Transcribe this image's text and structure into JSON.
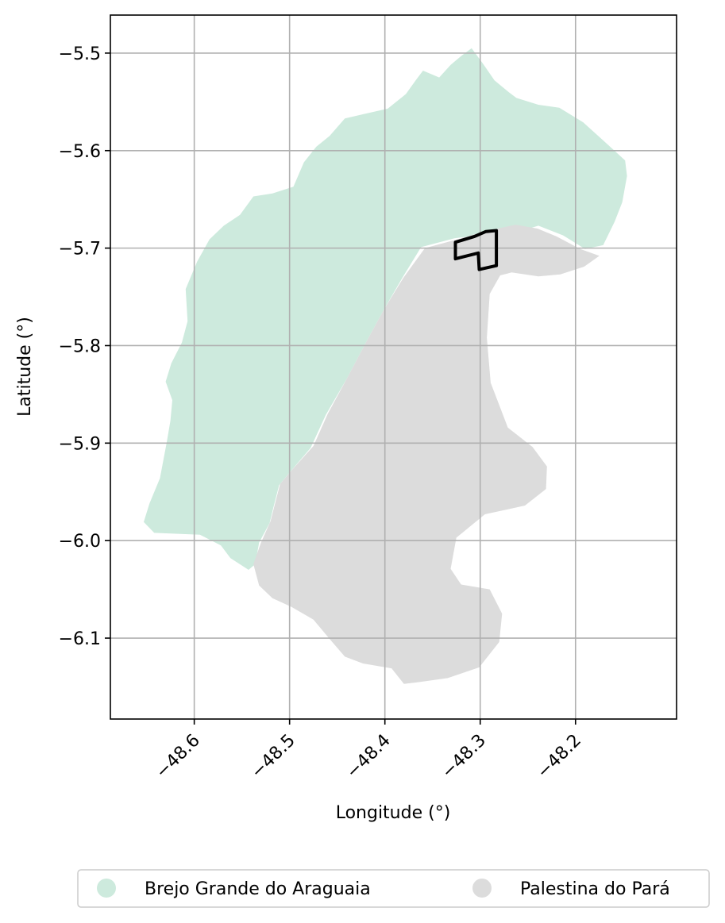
{
  "chart_data": {
    "type": "map",
    "xlabel": "Longitude (°)",
    "ylabel": "Latitude (°)",
    "xlim": [
      -48.688,
      -48.094
    ],
    "ylim": [
      -6.183,
      -5.461
    ],
    "xticks": [
      -48.6,
      -48.5,
      -48.4,
      -48.3,
      -48.2
    ],
    "xtick_labels": [
      "−48.6",
      "−48.5",
      "−48.4",
      "−48.3",
      "−48.2"
    ],
    "yticks": [
      -5.5,
      -5.6,
      -5.7,
      -5.8,
      -5.9,
      -6.0,
      -6.1
    ],
    "ytick_labels": [
      "−5.5",
      "−5.6",
      "−5.7",
      "−5.8",
      "−5.9",
      "−6.0",
      "−6.1"
    ],
    "grid": true,
    "legend_position": "bottom",
    "regions": [
      {
        "name": "Brejo Grande do Araguaia",
        "color": "#cdeadd",
        "boundary": [
          [
            -48.309,
            -5.495
          ],
          [
            -48.297,
            -5.511
          ],
          [
            -48.285,
            -5.528
          ],
          [
            -48.27,
            -5.54
          ],
          [
            -48.262,
            -5.546
          ],
          [
            -48.239,
            -5.553
          ],
          [
            -48.217,
            -5.556
          ],
          [
            -48.192,
            -5.571
          ],
          [
            -48.166,
            -5.594
          ],
          [
            -48.148,
            -5.61
          ],
          [
            -48.146,
            -5.626
          ],
          [
            -48.151,
            -5.653
          ],
          [
            -48.159,
            -5.673
          ],
          [
            -48.171,
            -5.697
          ],
          [
            -48.19,
            -5.701
          ],
          [
            -48.213,
            -5.687
          ],
          [
            -48.239,
            -5.677
          ],
          [
            -48.259,
            -5.683
          ],
          [
            -48.287,
            -5.685
          ],
          [
            -48.327,
            -5.69
          ],
          [
            -48.362,
            -5.699
          ],
          [
            -48.382,
            -5.731
          ],
          [
            -48.401,
            -5.763
          ],
          [
            -48.42,
            -5.797
          ],
          [
            -48.44,
            -5.834
          ],
          [
            -48.462,
            -5.871
          ],
          [
            -48.478,
            -5.905
          ],
          [
            -48.499,
            -5.929
          ],
          [
            -48.511,
            -5.943
          ],
          [
            -48.517,
            -5.966
          ],
          [
            -48.521,
            -5.982
          ],
          [
            -48.532,
            -6.002
          ],
          [
            -48.536,
            -6.024
          ],
          [
            -48.543,
            -6.03
          ],
          [
            -48.562,
            -6.018
          ],
          [
            -48.572,
            -6.005
          ],
          [
            -48.594,
            -5.994
          ],
          [
            -48.617,
            -5.993
          ],
          [
            -48.642,
            -5.992
          ],
          [
            -48.653,
            -5.981
          ],
          [
            -48.647,
            -5.962
          ],
          [
            -48.636,
            -5.936
          ],
          [
            -48.629,
            -5.9
          ],
          [
            -48.625,
            -5.877
          ],
          [
            -48.623,
            -5.856
          ],
          [
            -48.63,
            -5.837
          ],
          [
            -48.624,
            -5.818
          ],
          [
            -48.613,
            -5.797
          ],
          [
            -48.607,
            -5.775
          ],
          [
            -48.609,
            -5.742
          ],
          [
            -48.597,
            -5.714
          ],
          [
            -48.584,
            -5.691
          ],
          [
            -48.569,
            -5.677
          ],
          [
            -48.552,
            -5.666
          ],
          [
            -48.538,
            -5.647
          ],
          [
            -48.518,
            -5.644
          ],
          [
            -48.496,
            -5.637
          ],
          [
            -48.485,
            -5.612
          ],
          [
            -48.472,
            -5.596
          ],
          [
            -48.458,
            -5.585
          ],
          [
            -48.442,
            -5.567
          ],
          [
            -48.42,
            -5.562
          ],
          [
            -48.397,
            -5.557
          ],
          [
            -48.378,
            -5.542
          ],
          [
            -48.367,
            -5.527
          ],
          [
            -48.36,
            -5.518
          ],
          [
            -48.343,
            -5.525
          ],
          [
            -48.331,
            -5.512
          ],
          [
            -48.32,
            -5.503
          ]
        ]
      },
      {
        "name": "Palestina do Pará",
        "color": "#dcdcdc",
        "boundary": [
          [
            -48.358,
            -5.7
          ],
          [
            -48.324,
            -5.691
          ],
          [
            -48.3,
            -5.684
          ],
          [
            -48.263,
            -5.676
          ],
          [
            -48.24,
            -5.68
          ],
          [
            -48.22,
            -5.688
          ],
          [
            -48.195,
            -5.701
          ],
          [
            -48.175,
            -5.708
          ],
          [
            -48.191,
            -5.719
          ],
          [
            -48.216,
            -5.727
          ],
          [
            -48.239,
            -5.729
          ],
          [
            -48.267,
            -5.725
          ],
          [
            -48.279,
            -5.728
          ],
          [
            -48.29,
            -5.747
          ],
          [
            -48.293,
            -5.792
          ],
          [
            -48.289,
            -5.838
          ],
          [
            -48.271,
            -5.884
          ],
          [
            -48.245,
            -5.904
          ],
          [
            -48.23,
            -5.924
          ],
          [
            -48.231,
            -5.947
          ],
          [
            -48.253,
            -5.964
          ],
          [
            -48.295,
            -5.973
          ],
          [
            -48.325,
            -5.997
          ],
          [
            -48.331,
            -6.029
          ],
          [
            -48.32,
            -6.045
          ],
          [
            -48.29,
            -6.05
          ],
          [
            -48.277,
            -6.075
          ],
          [
            -48.28,
            -6.104
          ],
          [
            -48.301,
            -6.13
          ],
          [
            -48.334,
            -6.141
          ],
          [
            -48.363,
            -6.145
          ],
          [
            -48.38,
            -6.147
          ],
          [
            -48.393,
            -6.131
          ],
          [
            -48.423,
            -6.126
          ],
          [
            -48.442,
            -6.119
          ],
          [
            -48.457,
            -6.102
          ],
          [
            -48.475,
            -6.081
          ],
          [
            -48.498,
            -6.068
          ],
          [
            -48.518,
            -6.059
          ],
          [
            -48.532,
            -6.046
          ],
          [
            -48.538,
            -6.024
          ],
          [
            -48.53,
            -6.002
          ],
          [
            -48.52,
            -5.98
          ],
          [
            -48.51,
            -5.942
          ],
          [
            -48.498,
            -5.928
          ],
          [
            -48.475,
            -5.903
          ],
          [
            -48.46,
            -5.87
          ],
          [
            -48.44,
            -5.834
          ],
          [
            -48.42,
            -5.797
          ],
          [
            -48.401,
            -5.763
          ],
          [
            -48.381,
            -5.731
          ]
        ]
      }
    ],
    "highlight_outline": {
      "color": "#000000",
      "boundary": [
        [
          -48.326,
          -5.694
        ],
        [
          -48.306,
          -5.688
        ],
        [
          -48.294,
          -5.683
        ],
        [
          -48.283,
          -5.682
        ],
        [
          -48.283,
          -5.718
        ],
        [
          -48.301,
          -5.722
        ],
        [
          -48.302,
          -5.705
        ],
        [
          -48.326,
          -5.711
        ]
      ]
    },
    "legend": [
      "Brejo Grande do Araguaia",
      "Palestina do Pará"
    ]
  }
}
